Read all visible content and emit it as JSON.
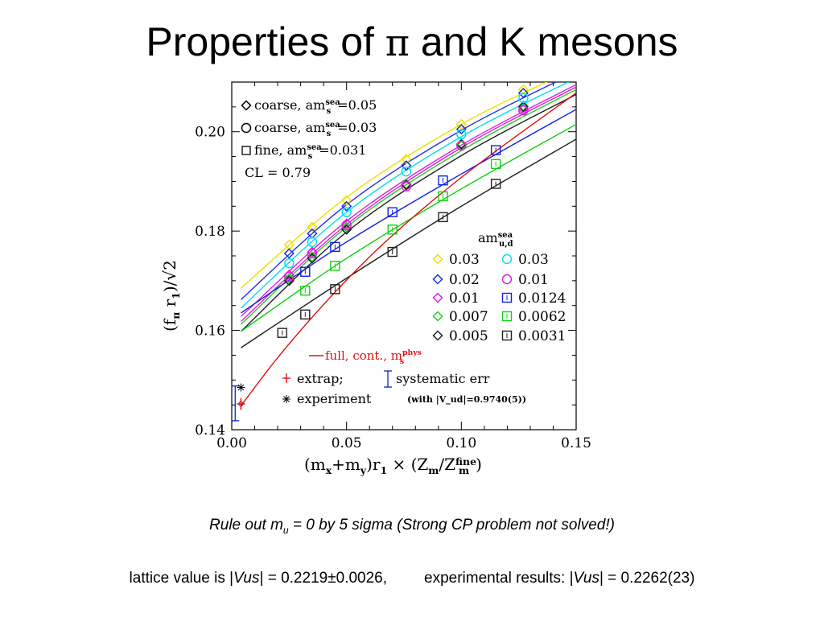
{
  "title": {
    "before": "Properties of ",
    "symbol": "π",
    "after": " and K mesons"
  },
  "caption": {
    "before": "Rule out m",
    "sub": "u",
    "after": " = 0 by 5 sigma (Strong CP problem not solved!)"
  },
  "footer": {
    "lattice_before": "lattice value is |",
    "lattice_var": "Vus",
    "lattice_after": "| = 0.2219±0.0026,",
    "exp_before": "experimental results: |",
    "exp_var": "Vus",
    "exp_after": "| = 0.2262(23)"
  },
  "chart_data": {
    "type": "scatter",
    "ylabel": "(f_π r_1)/√2",
    "xlabel": "(m_x+m_y)r_1 × (Z_m/Z_m^fine)",
    "xlim": [
      0.0,
      0.15
    ],
    "ylim": [
      0.14,
      0.21
    ],
    "x_ticks": [
      "0.00",
      "0.05",
      "0.10",
      "0.15"
    ],
    "y_ticks": [
      "0.14",
      "0.16",
      "0.18",
      "0.20"
    ],
    "legend_top": {
      "coarse_005": "coarse, am_s^sea=0.05",
      "coarse_003": "coarse, am_s^sea=0.03",
      "fine": "fine, am_s^sea=0.031",
      "cl": "CL = 0.79"
    },
    "legend_title": "am_u,d^sea",
    "legend_bottom": {
      "full": "full, cont., m_s^phys",
      "extrap": "extrap;",
      "syst": "systematic err",
      "experiment": "experiment",
      "with_vud": "(with |V_ud|=0.9740(5))"
    },
    "series": [
      {
        "name": "0.03",
        "marker": "diamond",
        "color": "#f0e000",
        "x": [
          0.025,
          0.035,
          0.05,
          0.076,
          0.1,
          0.127
        ],
        "y": [
          0.1772,
          0.1808,
          0.1862,
          0.1945,
          0.2015,
          0.2085
        ],
        "fit": [
          [
            0.004,
            0.1685
          ],
          [
            0.05,
            0.1868
          ],
          [
            0.1,
            0.2015
          ],
          [
            0.15,
            0.2128
          ]
        ]
      },
      {
        "name": "0.02",
        "marker": "diamond",
        "color": "#2030e0",
        "x": [
          0.025,
          0.035,
          0.05,
          0.076,
          0.1,
          0.127
        ],
        "y": [
          0.1755,
          0.1795,
          0.185,
          0.1932,
          0.2005,
          0.2078
        ],
        "fit": [
          [
            0.004,
            0.1662
          ],
          [
            0.05,
            0.1853
          ],
          [
            0.1,
            0.2003
          ],
          [
            0.15,
            0.212
          ]
        ]
      },
      {
        "name": "0.01",
        "marker": "diamond",
        "color": "#e020e0",
        "x": [
          0.025,
          0.035,
          0.05,
          0.076,
          0.1,
          0.127
        ],
        "y": [
          0.1712,
          0.1758,
          0.1815,
          0.1892,
          0.1975,
          0.2045
        ],
        "fit": [
          [
            0.004,
            0.1628
          ],
          [
            0.05,
            0.182
          ],
          [
            0.1,
            0.1973
          ],
          [
            0.15,
            0.2095
          ]
        ]
      },
      {
        "name": "0.007",
        "marker": "diamond",
        "color": "#20d020",
        "x": [
          0.025,
          0.035,
          0.05,
          0.076,
          0.1,
          0.127
        ],
        "y": [
          0.1705,
          0.1748,
          0.1808,
          0.1895,
          0.1972,
          0.2052
        ],
        "fit": [
          [
            0.004,
            0.1612
          ],
          [
            0.05,
            0.1808
          ],
          [
            0.1,
            0.1962
          ],
          [
            0.15,
            0.2085
          ]
        ]
      },
      {
        "name": "0.005",
        "marker": "diamond",
        "color": "#202020",
        "x": [
          0.025,
          0.035,
          0.05,
          0.076,
          0.1,
          0.127
        ],
        "y": [
          0.17,
          0.1745,
          0.1803,
          0.1893,
          0.1975,
          0.205
        ],
        "fit": [
          [
            0.004,
            0.1598
          ],
          [
            0.05,
            0.1798
          ],
          [
            0.1,
            0.1952
          ],
          [
            0.15,
            0.2075
          ]
        ]
      },
      {
        "name": "0.03",
        "marker": "circle",
        "color": "#00e0f0",
        "x": [
          0.025,
          0.035,
          0.05,
          0.076,
          0.1,
          0.127
        ],
        "y": [
          0.1735,
          0.1778,
          0.1838,
          0.192,
          0.1995,
          0.2068
        ],
        "fit": [
          [
            0.004,
            0.1645
          ],
          [
            0.05,
            0.1838
          ],
          [
            0.1,
            0.199
          ],
          [
            0.15,
            0.2108
          ]
        ]
      },
      {
        "name": "0.01",
        "marker": "circle",
        "color": "#e020e0",
        "x": [
          0.025,
          0.035,
          0.05,
          0.076,
          0.1,
          0.127
        ],
        "y": [
          0.1708,
          0.1755,
          0.1812,
          0.189,
          0.1972,
          0.2043
        ],
        "fit": [
          [
            0.004,
            0.1618
          ],
          [
            0.05,
            0.1813
          ],
          [
            0.1,
            0.1968
          ],
          [
            0.15,
            0.209
          ]
        ]
      },
      {
        "name": "0.0124",
        "marker": "square",
        "color": "#1020e0",
        "x": [
          0.032,
          0.045,
          0.07,
          0.092,
          0.115
        ],
        "y": [
          0.1718,
          0.1768,
          0.1838,
          0.1902,
          0.1963
        ],
        "fit": [
          [
            0.004,
            0.1635
          ],
          [
            0.05,
            0.1778
          ],
          [
            0.1,
            0.1915
          ],
          [
            0.15,
            0.2045
          ]
        ]
      },
      {
        "name": "0.0062",
        "marker": "square",
        "color": "#10d010",
        "x": [
          0.032,
          0.045,
          0.07,
          0.092,
          0.115
        ],
        "y": [
          0.168,
          0.173,
          0.1803,
          0.187,
          0.1935
        ],
        "fit": [
          [
            0.004,
            0.1598
          ],
          [
            0.05,
            0.1745
          ],
          [
            0.1,
            0.1885
          ],
          [
            0.15,
            0.2015
          ]
        ]
      },
      {
        "name": "0.0031",
        "marker": "square",
        "color": "#202020",
        "x": [
          0.022,
          0.032,
          0.045,
          0.07,
          0.092,
          0.115
        ],
        "y": [
          0.1595,
          0.1632,
          0.1683,
          0.1758,
          0.1828,
          0.1895
        ],
        "fit": [
          [
            0.004,
            0.1565
          ],
          [
            0.05,
            0.1705
          ],
          [
            0.1,
            0.185
          ],
          [
            0.15,
            0.1985
          ]
        ]
      }
    ],
    "full_continuum_curve": {
      "color": "#e01010",
      "points": [
        [
          0.004,
          0.1448
        ],
        [
          0.02,
          0.1545
        ],
        [
          0.04,
          0.1652
        ],
        [
          0.06,
          0.1748
        ],
        [
          0.08,
          0.1832
        ],
        [
          0.1,
          0.1908
        ],
        [
          0.12,
          0.1978
        ],
        [
          0.15,
          0.2078
        ]
      ]
    },
    "extrapolated_point": {
      "x": 0.004,
      "y": 0.1452,
      "err": 0.0012,
      "color": "#e01010"
    },
    "systematic_error_bar": {
      "x": 0.0015,
      "low": 0.1418,
      "high": 0.1488,
      "color": "#1020d0"
    },
    "experiment_point": {
      "x": 0.004,
      "y": 0.1485
    }
  }
}
